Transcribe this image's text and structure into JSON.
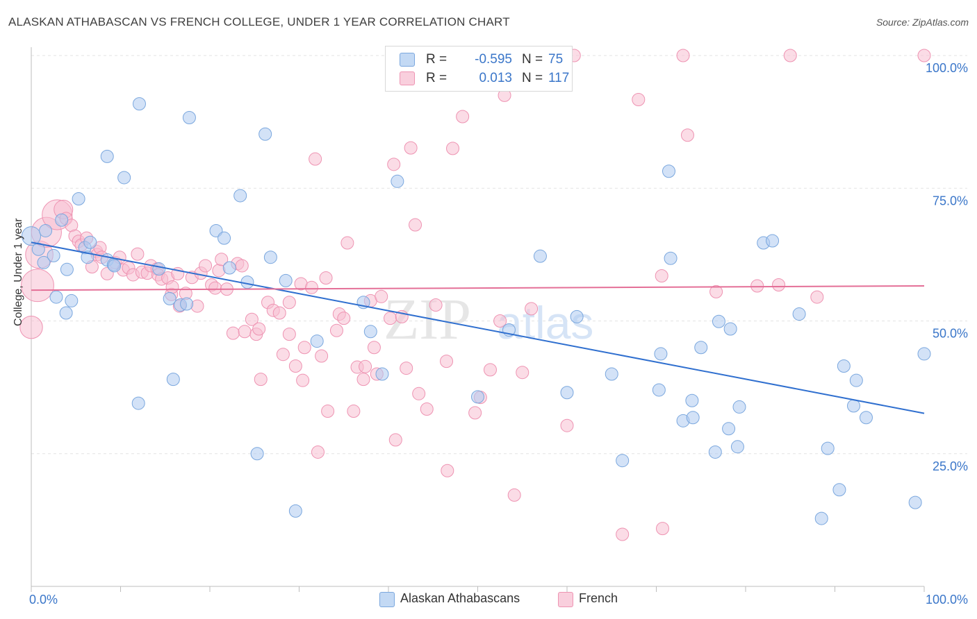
{
  "title": "ALASKAN ATHABASCAN VS FRENCH COLLEGE, UNDER 1 YEAR CORRELATION CHART",
  "source": "Source: ZipAtlas.com",
  "watermark": {
    "zip": "ZIP",
    "atlas": "atlas"
  },
  "legend_top": {
    "rows": [
      {
        "r_label": "R =",
        "r_value": "-0.595",
        "n_label": "N =",
        "n_value": "75",
        "color": "#aecbf0"
      },
      {
        "r_label": "R =",
        "r_value": "0.013",
        "n_label": "N =",
        "n_value": "117",
        "color": "#f8c0d2"
      }
    ]
  },
  "legend_bottom": {
    "items": [
      {
        "label": "Alaskan Athabascans",
        "color": "#aecbf0"
      },
      {
        "label": "French",
        "color": "#f8c0d2"
      }
    ]
  },
  "chart_data": {
    "type": "scatter",
    "title": "ALASKAN ATHABASCAN VS FRENCH COLLEGE, UNDER 1 YEAR CORRELATION CHART",
    "xlabel": "",
    "ylabel": "College, Under 1 year",
    "xlim": [
      0,
      100
    ],
    "ylim": [
      0,
      100
    ],
    "x_tick_labels": [
      "0.0%",
      "100.0%"
    ],
    "y_ticks": [
      25,
      50,
      75,
      100
    ],
    "y_tick_labels": [
      "25.0%",
      "50.0%",
      "75.0%",
      "100.0%"
    ],
    "grid": true,
    "series": [
      {
        "name": "Alaskan Athabascans",
        "color": "#aecbf0",
        "stroke": "#7aa7de",
        "trend_color": "#2f6fcf",
        "trend": {
          "x0": 0,
          "y0": 64.8,
          "x1": 100,
          "y1": 32.6
        },
        "points": [
          [
            0.0,
            66.0,
            1.5
          ],
          [
            0.8,
            63.5,
            1
          ],
          [
            1.4,
            61.0,
            1
          ],
          [
            2.5,
            62.3,
            1
          ],
          [
            3.4,
            69.0,
            1
          ],
          [
            1.6,
            67.0,
            1
          ],
          [
            2.8,
            54.5,
            1
          ],
          [
            4.0,
            59.7,
            1
          ],
          [
            4.5,
            53.8,
            1
          ],
          [
            3.9,
            51.5,
            1
          ],
          [
            5.3,
            73.0,
            1
          ],
          [
            6.0,
            63.8,
            1
          ],
          [
            6.3,
            62.0,
            1
          ],
          [
            6.6,
            64.8,
            1
          ],
          [
            8.5,
            61.5,
            1
          ],
          [
            9.2,
            60.6,
            1
          ],
          [
            9.3,
            60.4,
            1
          ],
          [
            8.5,
            81.0,
            1
          ],
          [
            10.4,
            77.0,
            1
          ],
          [
            12.0,
            34.5,
            1
          ],
          [
            12.1,
            90.9,
            1
          ],
          [
            14.3,
            59.8,
            1
          ],
          [
            15.5,
            54.2,
            1
          ],
          [
            15.9,
            39.0,
            1
          ],
          [
            16.7,
            53.0,
            1
          ],
          [
            17.4,
            53.2,
            1
          ],
          [
            17.7,
            88.3,
            1
          ],
          [
            20.7,
            67.0,
            1
          ],
          [
            21.6,
            65.6,
            1
          ],
          [
            22.2,
            60.0,
            1
          ],
          [
            23.4,
            73.6,
            1
          ],
          [
            24.2,
            57.3,
            1
          ],
          [
            25.3,
            25.0,
            1
          ],
          [
            26.2,
            85.2,
            1
          ],
          [
            26.8,
            62.0,
            1
          ],
          [
            28.5,
            57.6,
            1
          ],
          [
            29.6,
            14.2,
            1
          ],
          [
            32.0,
            46.2,
            1
          ],
          [
            37.2,
            53.5,
            1
          ],
          [
            38.0,
            48.0,
            1
          ],
          [
            39.3,
            40.0,
            1
          ],
          [
            41.0,
            76.3,
            1
          ],
          [
            50.0,
            35.7,
            1
          ],
          [
            53.5,
            48.3,
            1
          ],
          [
            57.0,
            62.2,
            1
          ],
          [
            60.0,
            36.5,
            1
          ],
          [
            61.1,
            50.8,
            1
          ],
          [
            65.0,
            40.0,
            1
          ],
          [
            66.2,
            23.7,
            1
          ],
          [
            70.3,
            37.0,
            1
          ],
          [
            70.5,
            43.8,
            1
          ],
          [
            71.4,
            78.2,
            1
          ],
          [
            71.6,
            61.8,
            1
          ],
          [
            73.0,
            31.2,
            1
          ],
          [
            74.1,
            31.8,
            1
          ],
          [
            74.0,
            35.0,
            1
          ],
          [
            75.0,
            45.0,
            1
          ],
          [
            76.6,
            25.3,
            1
          ],
          [
            77.0,
            49.9,
            1
          ],
          [
            78.1,
            29.7,
            1
          ],
          [
            78.3,
            48.5,
            1
          ],
          [
            79.1,
            26.3,
            1
          ],
          [
            79.3,
            33.8,
            1
          ],
          [
            82.0,
            64.7,
            1
          ],
          [
            83.0,
            65.1,
            1
          ],
          [
            86.0,
            51.3,
            1
          ],
          [
            88.5,
            12.8,
            1
          ],
          [
            89.2,
            26.0,
            1
          ],
          [
            90.5,
            18.2,
            1
          ],
          [
            91.0,
            41.5,
            1
          ],
          [
            92.1,
            34.0,
            1
          ],
          [
            92.4,
            38.8,
            1
          ],
          [
            93.5,
            31.8,
            1
          ],
          [
            99.0,
            15.8,
            1
          ],
          [
            100.0,
            43.8,
            1
          ]
        ]
      },
      {
        "name": "French",
        "color": "#f8c0d2",
        "stroke": "#ee93b2",
        "trend_color": "#e46f97",
        "trend": {
          "x0": 0,
          "y0": 55.8,
          "x1": 100,
          "y1": 56.6
        },
        "points": [
          [
            0.0,
            48.8,
            1.8
          ],
          [
            0.7,
            56.7,
            2.6
          ],
          [
            0.9,
            62.5,
            2.2
          ],
          [
            1.7,
            66.7,
            2.4
          ],
          [
            2.9,
            70.0,
            2.4
          ],
          [
            3.6,
            71.0,
            1.5
          ],
          [
            3.9,
            69.3,
            1
          ],
          [
            4.5,
            68.0,
            1
          ],
          [
            4.9,
            66.0,
            1
          ],
          [
            5.3,
            65.0,
            1
          ],
          [
            5.6,
            64.3,
            1
          ],
          [
            6.2,
            65.6,
            1
          ],
          [
            6.8,
            60.2,
            1
          ],
          [
            7.3,
            63.1,
            1
          ],
          [
            7.4,
            62.5,
            1
          ],
          [
            7.7,
            63.8,
            1
          ],
          [
            7.9,
            62.0,
            1
          ],
          [
            8.5,
            58.9,
            1
          ],
          [
            9.4,
            61.0,
            1
          ],
          [
            9.9,
            62.0,
            1
          ],
          [
            10.3,
            59.6,
            1
          ],
          [
            10.9,
            60.0,
            1
          ],
          [
            11.4,
            58.7,
            1
          ],
          [
            11.9,
            62.6,
            1
          ],
          [
            12.4,
            59.2,
            1
          ],
          [
            13.0,
            59.0,
            1
          ],
          [
            13.4,
            60.4,
            1
          ],
          [
            14.1,
            59.8,
            1
          ],
          [
            14.2,
            58.7,
            1
          ],
          [
            14.6,
            57.9,
            1
          ],
          [
            15.3,
            58.1,
            1
          ],
          [
            15.7,
            55.0,
            1
          ],
          [
            15.8,
            56.4,
            1
          ],
          [
            16.4,
            58.9,
            1
          ],
          [
            16.6,
            52.8,
            1
          ],
          [
            17.3,
            55.2,
            1
          ],
          [
            18.0,
            58.2,
            1
          ],
          [
            18.6,
            52.8,
            1
          ],
          [
            19.0,
            59.0,
            1
          ],
          [
            19.5,
            60.4,
            1
          ],
          [
            20.2,
            56.8,
            1
          ],
          [
            20.6,
            56.2,
            1
          ],
          [
            21.0,
            59.5,
            1
          ],
          [
            21.3,
            61.6,
            1
          ],
          [
            21.9,
            56.0,
            1
          ],
          [
            22.6,
            47.7,
            1
          ],
          [
            23.1,
            60.8,
            1
          ],
          [
            23.6,
            60.4,
            1
          ],
          [
            23.9,
            48.0,
            1
          ],
          [
            24.7,
            50.3,
            1
          ],
          [
            25.2,
            47.5,
            1
          ],
          [
            25.5,
            48.5,
            1
          ],
          [
            25.7,
            39.0,
            1
          ],
          [
            26.5,
            53.5,
            1
          ],
          [
            27.1,
            52.0,
            1
          ],
          [
            27.8,
            51.5,
            1
          ],
          [
            28.2,
            43.7,
            1
          ],
          [
            28.9,
            53.5,
            1
          ],
          [
            28.9,
            47.5,
            1
          ],
          [
            29.6,
            41.5,
            1
          ],
          [
            30.2,
            57.0,
            1
          ],
          [
            30.4,
            38.8,
            1
          ],
          [
            30.6,
            45.0,
            1
          ],
          [
            31.4,
            56.3,
            1
          ],
          [
            31.8,
            80.5,
            1
          ],
          [
            32.1,
            25.3,
            1
          ],
          [
            32.5,
            43.4,
            1
          ],
          [
            33.0,
            58.1,
            1
          ],
          [
            33.2,
            33.0,
            1
          ],
          [
            34.2,
            48.2,
            1
          ],
          [
            34.5,
            51.3,
            1
          ],
          [
            35.0,
            50.5,
            1
          ],
          [
            35.4,
            64.7,
            1
          ],
          [
            36.1,
            33.0,
            1
          ],
          [
            36.5,
            41.3,
            1
          ],
          [
            37.2,
            39.0,
            1
          ],
          [
            37.4,
            41.4,
            1
          ],
          [
            38.0,
            53.8,
            1
          ],
          [
            38.4,
            45.0,
            1
          ],
          [
            38.7,
            40.0,
            1
          ],
          [
            39.2,
            54.6,
            1
          ],
          [
            40.2,
            50.5,
            1
          ],
          [
            40.6,
            79.5,
            1
          ],
          [
            40.8,
            27.6,
            1
          ],
          [
            41.5,
            50.8,
            1
          ],
          [
            42.0,
            41.1,
            1
          ],
          [
            42.5,
            82.6,
            1
          ],
          [
            43.0,
            68.1,
            1
          ],
          [
            43.4,
            36.3,
            1
          ],
          [
            44.3,
            33.4,
            1
          ],
          [
            45.3,
            53.0,
            1
          ],
          [
            46.5,
            42.4,
            1
          ],
          [
            46.6,
            21.8,
            1
          ],
          [
            47.2,
            82.5,
            1
          ],
          [
            48.3,
            88.5,
            1
          ],
          [
            49.7,
            32.7,
            1
          ],
          [
            50.3,
            35.6,
            1
          ],
          [
            51.4,
            40.8,
            1
          ],
          [
            52.5,
            50.0,
            1
          ],
          [
            53.0,
            92.5,
            1
          ],
          [
            54.1,
            17.2,
            1
          ],
          [
            55.0,
            40.3,
            1
          ],
          [
            56.0,
            52.3,
            1
          ],
          [
            60.0,
            30.3,
            1
          ],
          [
            60.8,
            100.0,
            1
          ],
          [
            66.2,
            9.8,
            1
          ],
          [
            68.0,
            91.7,
            1
          ],
          [
            70.6,
            58.5,
            1
          ],
          [
            70.7,
            10.9,
            1
          ],
          [
            73.0,
            100.0,
            1
          ],
          [
            73.5,
            85.0,
            1
          ],
          [
            76.7,
            55.5,
            1
          ],
          [
            81.3,
            56.6,
            1
          ],
          [
            83.7,
            56.8,
            1
          ],
          [
            85.0,
            100.0,
            1
          ],
          [
            88.0,
            54.5,
            1
          ],
          [
            100.0,
            100.0,
            1
          ]
        ]
      }
    ]
  }
}
